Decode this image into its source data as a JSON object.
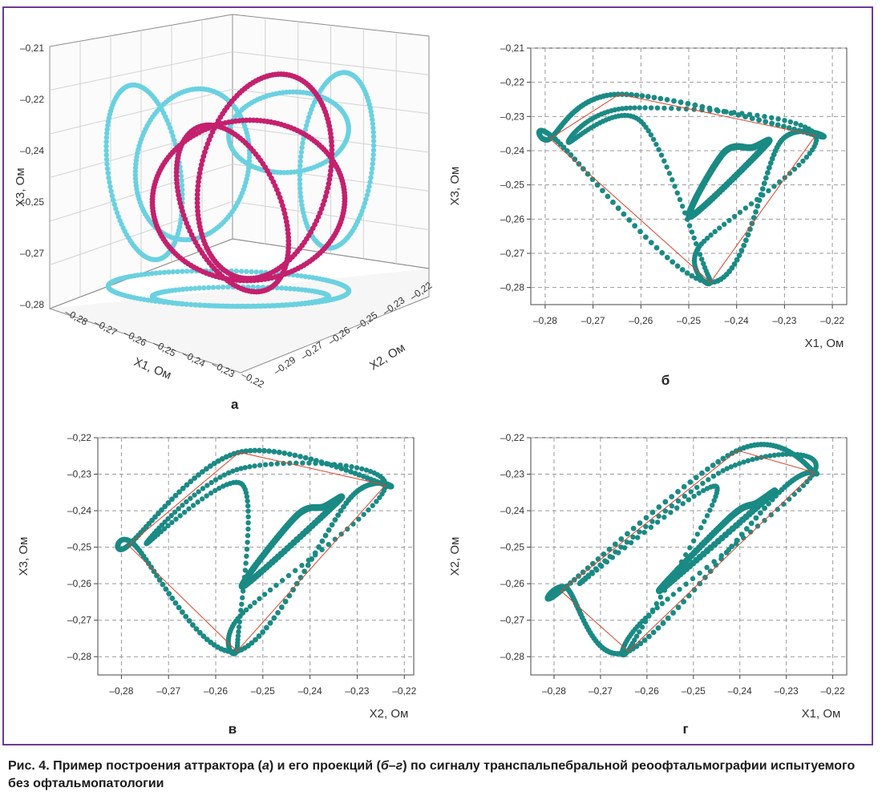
{
  "caption": {
    "prefix": "Рис. 4. Пример построения аттрактора (",
    "a": "а",
    "mid": ") и его проекций (",
    "bg": "б–г",
    "suffix": ") по сигналу транспальпебральной реоофтальмографии испытуемого без офтальмопатологии"
  },
  "colors": {
    "frame": "#6a3a96",
    "teal": "#1a8a84",
    "cyan": "#6ad1e0",
    "magenta": "#c4206e",
    "red": "#d9452b",
    "grid": "#9a9a9a"
  },
  "chart_data": [
    {
      "id": "a",
      "type": "scatter",
      "panel_label": "а",
      "xlabel": "X1, Ом",
      "ylabel": "X2, Ом",
      "zlabel": "X3, Ом",
      "x_ticks": [
        "–0,28",
        "–0,27",
        "–0,26",
        "–0,25",
        "–0,24",
        "–0,23",
        "–0,22"
      ],
      "y_ticks": [
        "–0,22",
        "–0,23",
        "–0,25",
        "–0,26",
        "–0,27",
        "–0,29"
      ],
      "z_ticks": [
        "–0,21",
        "–0,22",
        "–0,24",
        "–0,25",
        "–0,27",
        "–0,28"
      ]
    },
    {
      "id": "b",
      "type": "scatter",
      "panel_label": "б",
      "xlabel": "X1, Ом",
      "ylabel": "X3, Ом",
      "xlim": [
        -0.283,
        -0.217
      ],
      "ylim": [
        -0.285,
        -0.21
      ],
      "x_ticks": [
        "–0,28",
        "–0,27",
        "–0,26",
        "–0,25",
        "–0,24",
        "–0,23",
        "–0,22"
      ],
      "y_ticks": [
        "–0,21",
        "–0,22",
        "–0,23",
        "–0,24",
        "–0,25",
        "–0,26",
        "–0,27",
        "–0,28"
      ],
      "hull": [
        [
          -0.279,
          -0.2365
        ],
        [
          -0.2645,
          -0.2235
        ],
        [
          -0.2235,
          -0.2355
        ],
        [
          -0.2455,
          -0.2785
        ]
      ]
    },
    {
      "id": "c",
      "type": "scatter",
      "panel_label": "в",
      "xlabel": "X2, Ом",
      "ylabel": "X3, Ом",
      "xlim": [
        -0.285,
        -0.218
      ],
      "ylim": [
        -0.285,
        -0.22
      ],
      "x_ticks": [
        "–0,28",
        "–0,27",
        "–0,26",
        "–0,25",
        "–0,24",
        "–0,23",
        "–0,22"
      ],
      "y_ticks": [
        "–0,22",
        "–0,23",
        "–0,24",
        "–0,25",
        "–0,26",
        "–0,27",
        "–0,28"
      ],
      "hull": [
        [
          -0.2785,
          -0.2495
        ],
        [
          -0.255,
          -0.224
        ],
        [
          -0.224,
          -0.233
        ],
        [
          -0.2555,
          -0.2785
        ]
      ]
    },
    {
      "id": "d",
      "type": "scatter",
      "panel_label": "г",
      "xlabel": "X1, Ом",
      "ylabel": "X2, Ом",
      "xlim": [
        -0.285,
        -0.217
      ],
      "ylim": [
        -0.285,
        -0.22
      ],
      "x_ticks": [
        "–0,28",
        "–0,27",
        "–0,26",
        "–0,25",
        "–0,24",
        "–0,23",
        "–0,22"
      ],
      "y_ticks": [
        "–0,22",
        "–0,23",
        "–0,24",
        "–0,25",
        "–0,26",
        "–0,27",
        "–0,28"
      ],
      "hull": [
        [
          -0.2785,
          -0.262
        ],
        [
          -0.2405,
          -0.2235
        ],
        [
          -0.224,
          -0.2295
        ],
        [
          -0.264,
          -0.2785
        ]
      ]
    }
  ]
}
